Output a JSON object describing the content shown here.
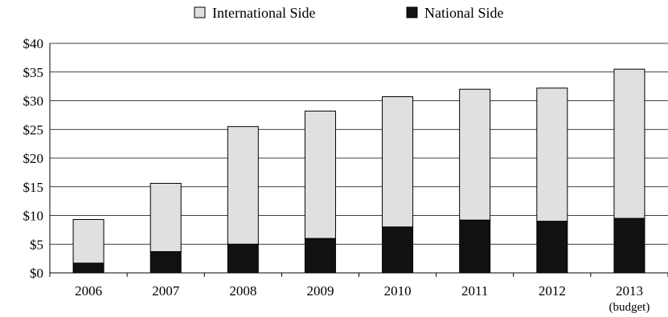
{
  "chart_data": {
    "type": "bar",
    "stacked": true,
    "categories": [
      "2006",
      "2007",
      "2008",
      "2009",
      "2010",
      "2011",
      "2012",
      "2013"
    ],
    "category_sublabels": [
      "",
      "",
      "",
      "",
      "",
      "",
      "",
      "(budget)"
    ],
    "series": [
      {
        "name": "National Side",
        "values": [
          1.7,
          3.7,
          5.0,
          6.0,
          8.0,
          9.2,
          9.0,
          9.5
        ],
        "color": "#111111"
      },
      {
        "name": "International Side",
        "values": [
          7.6,
          11.9,
          20.5,
          22.2,
          22.7,
          22.8,
          23.2,
          26.0
        ],
        "color": "#e0e0e0"
      }
    ],
    "legend_order": [
      "International Side",
      "National Side"
    ],
    "legend_position": "top-center",
    "ylim": [
      0,
      40
    ],
    "yticks": [
      0,
      5,
      10,
      15,
      20,
      25,
      30,
      35,
      40
    ],
    "ytick_labels": [
      "$0",
      "$5",
      "$10",
      "$15",
      "$20",
      "$25",
      "$30",
      "$35",
      "$40"
    ],
    "grid": "horizontal",
    "title": "",
    "xlabel": "",
    "ylabel": ""
  }
}
